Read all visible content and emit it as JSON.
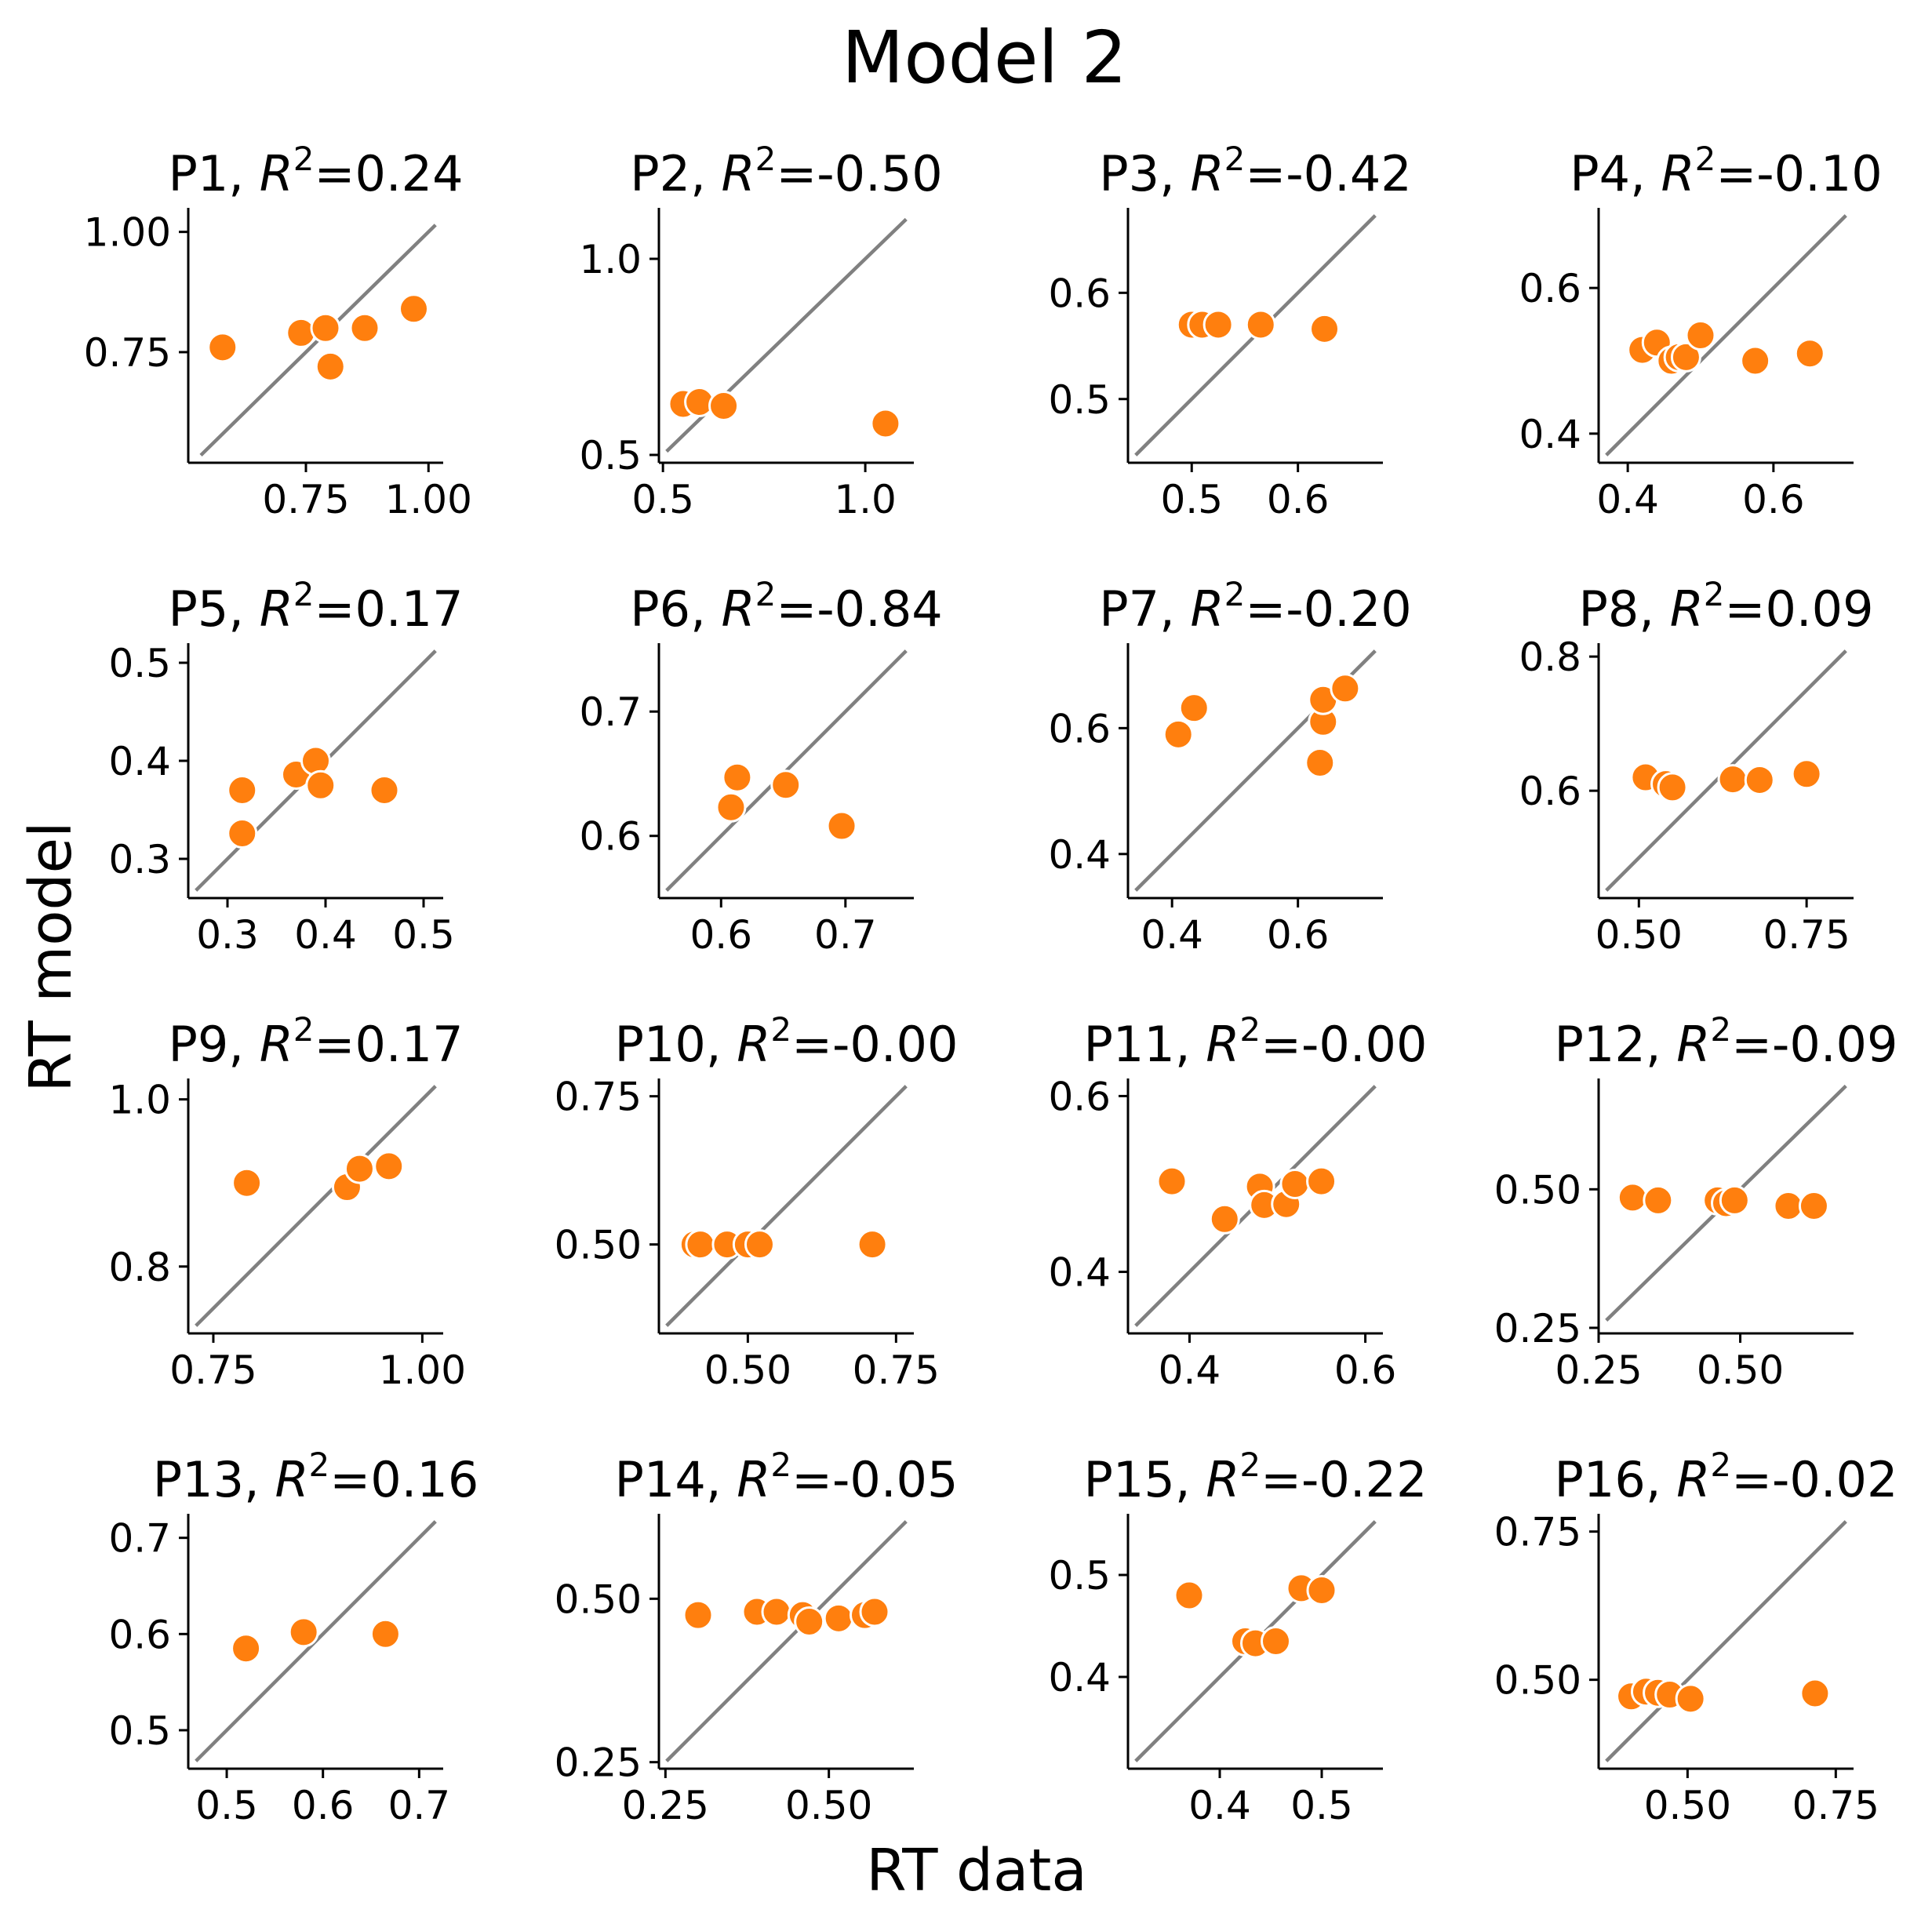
{
  "title": "Model 2",
  "xlabel": "RT data",
  "ylabel": "RT model",
  "chart_data": [
    {
      "type": "scatter",
      "panel": "P1",
      "r2": "0.24",
      "xlim": [
        0.51,
        1.03
      ],
      "ylim": [
        0.52,
        1.05
      ],
      "xticks": [
        0.75,
        1.0
      ],
      "xtick_labels": [
        "0.75",
        "1.00"
      ],
      "yticks": [
        0.75,
        1.0
      ],
      "ytick_labels": [
        "0.75",
        "1.00"
      ],
      "points": [
        [
          0.58,
          0.76
        ],
        [
          0.74,
          0.79
        ],
        [
          0.79,
          0.8
        ],
        [
          0.8,
          0.72
        ],
        [
          0.87,
          0.8
        ],
        [
          0.97,
          0.84
        ]
      ]
    },
    {
      "type": "scatter",
      "panel": "P2",
      "r2": "-0.50",
      "xlim": [
        0.49,
        1.12
      ],
      "ylim": [
        0.48,
        1.13
      ],
      "xticks": [
        0.5,
        1.0
      ],
      "xtick_labels": [
        "0.5",
        "1.0"
      ],
      "yticks": [
        0.5,
        1.0
      ],
      "ytick_labels": [
        "0.5",
        "1.0"
      ],
      "points": [
        [
          0.55,
          0.63
        ],
        [
          0.59,
          0.635
        ],
        [
          0.65,
          0.625
        ],
        [
          1.05,
          0.58
        ]
      ]
    },
    {
      "type": "scatter",
      "panel": "P3",
      "r2": "-0.42",
      "xlim": [
        0.44,
        0.68
      ],
      "ylim": [
        0.44,
        0.68
      ],
      "xticks": [
        0.5,
        0.6
      ],
      "xtick_labels": [
        "0.5",
        "0.6"
      ],
      "yticks": [
        0.5,
        0.6
      ],
      "ytick_labels": [
        "0.5",
        "0.6"
      ],
      "points": [
        [
          0.5,
          0.57
        ],
        [
          0.51,
          0.57
        ],
        [
          0.525,
          0.57
        ],
        [
          0.565,
          0.57
        ],
        [
          0.625,
          0.566
        ]
      ]
    },
    {
      "type": "scatter",
      "panel": "P4",
      "r2": "-0.10",
      "xlim": [
        0.36,
        0.71
      ],
      "ylim": [
        0.36,
        0.71
      ],
      "xticks": [
        0.4,
        0.6
      ],
      "xtick_labels": [
        "0.4",
        "0.6"
      ],
      "yticks": [
        0.4,
        0.6
      ],
      "ytick_labels": [
        "0.4",
        "0.6"
      ],
      "points": [
        [
          0.42,
          0.515
        ],
        [
          0.44,
          0.525
        ],
        [
          0.46,
          0.5
        ],
        [
          0.47,
          0.505
        ],
        [
          0.48,
          0.505
        ],
        [
          0.5,
          0.535
        ],
        [
          0.575,
          0.5
        ],
        [
          0.65,
          0.51
        ]
      ]
    },
    {
      "type": "scatter",
      "panel": "P5",
      "r2": "0.17",
      "xlim": [
        0.26,
        0.52
      ],
      "ylim": [
        0.26,
        0.52
      ],
      "xticks": [
        0.3,
        0.4,
        0.5
      ],
      "xtick_labels": [
        "0.3",
        "0.4",
        "0.5"
      ],
      "yticks": [
        0.3,
        0.4,
        0.5
      ],
      "ytick_labels": [
        "0.3",
        "0.4",
        "0.5"
      ],
      "points": [
        [
          0.315,
          0.37
        ],
        [
          0.315,
          0.326
        ],
        [
          0.37,
          0.386
        ],
        [
          0.39,
          0.4
        ],
        [
          0.395,
          0.375
        ],
        [
          0.46,
          0.37
        ]
      ]
    },
    {
      "type": "scatter",
      "panel": "P6",
      "r2": "-0.84",
      "xlim": [
        0.55,
        0.755
      ],
      "ylim": [
        0.55,
        0.755
      ],
      "xticks": [
        0.6,
        0.7
      ],
      "xtick_labels": [
        "0.6",
        "0.7"
      ],
      "yticks": [
        0.6,
        0.7
      ],
      "ytick_labels": [
        "0.6",
        "0.7"
      ],
      "points": [
        [
          0.608,
          0.623
        ],
        [
          0.613,
          0.647
        ],
        [
          0.652,
          0.641
        ],
        [
          0.697,
          0.608
        ]
      ]
    },
    {
      "type": "scatter",
      "panel": "P7",
      "r2": "-0.20",
      "xlim": [
        0.33,
        0.735
      ],
      "ylim": [
        0.33,
        0.735
      ],
      "xticks": [
        0.4,
        0.6
      ],
      "xtick_labels": [
        "0.4",
        "0.6"
      ],
      "yticks": [
        0.4,
        0.6
      ],
      "ytick_labels": [
        "0.4",
        "0.6"
      ],
      "points": [
        [
          0.41,
          0.59
        ],
        [
          0.435,
          0.632
        ],
        [
          0.635,
          0.545
        ],
        [
          0.64,
          0.61
        ],
        [
          0.64,
          0.645
        ],
        [
          0.675,
          0.663
        ]
      ]
    },
    {
      "type": "scatter",
      "panel": "P8",
      "r2": "0.09",
      "xlim": [
        0.44,
        0.82
      ],
      "ylim": [
        0.44,
        0.82
      ],
      "xticks": [
        0.5,
        0.75
      ],
      "xtick_labels": [
        "0.50",
        "0.75"
      ],
      "yticks": [
        0.6,
        0.8
      ],
      "ytick_labels": [
        "0.6",
        "0.8"
      ],
      "points": [
        [
          0.51,
          0.62
        ],
        [
          0.54,
          0.61
        ],
        [
          0.55,
          0.605
        ],
        [
          0.64,
          0.617
        ],
        [
          0.68,
          0.616
        ],
        [
          0.75,
          0.625
        ]
      ]
    },
    {
      "type": "scatter",
      "panel": "P9",
      "r2": "0.17",
      "xlim": [
        0.72,
        1.025
      ],
      "ylim": [
        0.72,
        1.025
      ],
      "xticks": [
        0.75,
        1.0
      ],
      "xtick_labels": [
        "0.75",
        "1.00"
      ],
      "yticks": [
        0.8,
        1.0
      ],
      "ytick_labels": [
        "0.8",
        "1.0"
      ],
      "points": [
        [
          0.79,
          0.9
        ],
        [
          0.91,
          0.895
        ],
        [
          0.925,
          0.917
        ],
        [
          0.96,
          0.92
        ]
      ]
    },
    {
      "type": "scatter",
      "panel": "P10",
      "r2": "-0.00",
      "xlim": [
        0.35,
        0.78
      ],
      "ylim": [
        0.35,
        0.78
      ],
      "xticks": [
        0.5,
        0.75
      ],
      "xtick_labels": [
        "0.50",
        "0.75"
      ],
      "yticks": [
        0.5,
        0.75
      ],
      "ytick_labels": [
        "0.50",
        "0.75"
      ],
      "points": [
        [
          0.41,
          0.5
        ],
        [
          0.42,
          0.5
        ],
        [
          0.465,
          0.5
        ],
        [
          0.5,
          0.5
        ],
        [
          0.52,
          0.5
        ],
        [
          0.71,
          0.5
        ]
      ]
    },
    {
      "type": "scatter",
      "panel": "P11",
      "r2": "-0.00",
      "xlim": [
        0.33,
        0.62
      ],
      "ylim": [
        0.33,
        0.62
      ],
      "xticks": [
        0.4,
        0.6
      ],
      "xtick_labels": [
        "0.4",
        "0.6"
      ],
      "yticks": [
        0.4,
        0.6
      ],
      "ytick_labels": [
        "0.4",
        "0.6"
      ],
      "points": [
        [
          0.38,
          0.503
        ],
        [
          0.44,
          0.46
        ],
        [
          0.48,
          0.497
        ],
        [
          0.485,
          0.476
        ],
        [
          0.51,
          0.477
        ],
        [
          0.52,
          0.5
        ],
        [
          0.55,
          0.503
        ]
      ]
    },
    {
      "type": "scatter",
      "panel": "P12",
      "r2": "-0.09",
      "xlim": [
        0.25,
        0.7
      ],
      "ylim": [
        0.24,
        0.7
      ],
      "xticks": [
        0.25,
        0.5
      ],
      "xtick_labels": [
        "0.25",
        "0.50"
      ],
      "yticks": [
        0.25,
        0.5
      ],
      "ytick_labels": [
        "0.25",
        "0.50"
      ],
      "points": [
        [
          0.31,
          0.485
        ],
        [
          0.355,
          0.48
        ],
        [
          0.46,
          0.48
        ],
        [
          0.475,
          0.475
        ],
        [
          0.49,
          0.48
        ],
        [
          0.585,
          0.47
        ],
        [
          0.63,
          0.47
        ]
      ]
    },
    {
      "type": "scatter",
      "panel": "P13",
      "r2": "0.16",
      "xlim": [
        0.46,
        0.725
      ],
      "ylim": [
        0.46,
        0.725
      ],
      "xticks": [
        0.5,
        0.6,
        0.7
      ],
      "xtick_labels": [
        "0.5",
        "0.6",
        "0.7"
      ],
      "yticks": [
        0.5,
        0.6,
        0.7
      ],
      "ytick_labels": [
        "0.5",
        "0.6",
        "0.7"
      ],
      "points": [
        [
          0.52,
          0.585
        ],
        [
          0.58,
          0.602
        ],
        [
          0.665,
          0.6
        ]
      ]
    },
    {
      "type": "scatter",
      "panel": "P14",
      "r2": "-0.05",
      "xlim": [
        0.24,
        0.63
      ],
      "ylim": [
        0.24,
        0.63
      ],
      "xticks": [
        0.25,
        0.5
      ],
      "xtick_labels": [
        "0.25",
        "0.50"
      ],
      "yticks": [
        0.25,
        0.5
      ],
      "ytick_labels": [
        "0.25",
        "0.50"
      ],
      "points": [
        [
          0.3,
          0.475
        ],
        [
          0.39,
          0.48
        ],
        [
          0.42,
          0.48
        ],
        [
          0.46,
          0.475
        ],
        [
          0.47,
          0.465
        ],
        [
          0.515,
          0.47
        ],
        [
          0.555,
          0.475
        ],
        [
          0.57,
          0.48
        ]
      ]
    },
    {
      "type": "scatter",
      "panel": "P15",
      "r2": "-0.22",
      "xlim": [
        0.31,
        0.56
      ],
      "ylim": [
        0.31,
        0.56
      ],
      "xticks": [
        0.4,
        0.5
      ],
      "xtick_labels": [
        "0.4",
        "0.5"
      ],
      "yticks": [
        0.4,
        0.5
      ],
      "ytick_labels": [
        "0.4",
        "0.5"
      ],
      "points": [
        [
          0.37,
          0.48
        ],
        [
          0.425,
          0.435
        ],
        [
          0.435,
          0.433
        ],
        [
          0.455,
          0.435
        ],
        [
          0.48,
          0.487
        ],
        [
          0.5,
          0.485
        ]
      ]
    },
    {
      "type": "scatter",
      "panel": "P16",
      "r2": "-0.02",
      "xlim": [
        0.35,
        0.78
      ],
      "ylim": [
        0.35,
        0.78
      ],
      "xticks": [
        0.5,
        0.75
      ],
      "xtick_labels": [
        "0.50",
        "0.75"
      ],
      "yticks": [
        0.5,
        0.75
      ],
      "ytick_labels": [
        "0.50",
        "0.75"
      ],
      "points": [
        [
          0.405,
          0.472
        ],
        [
          0.43,
          0.48
        ],
        [
          0.45,
          0.478
        ],
        [
          0.47,
          0.475
        ],
        [
          0.505,
          0.468
        ],
        [
          0.715,
          0.477
        ]
      ]
    }
  ],
  "colors": {
    "point": "#ff7f0e",
    "point_edge": "#ffffff",
    "identity_line": "#808080",
    "axis": "#000000"
  }
}
